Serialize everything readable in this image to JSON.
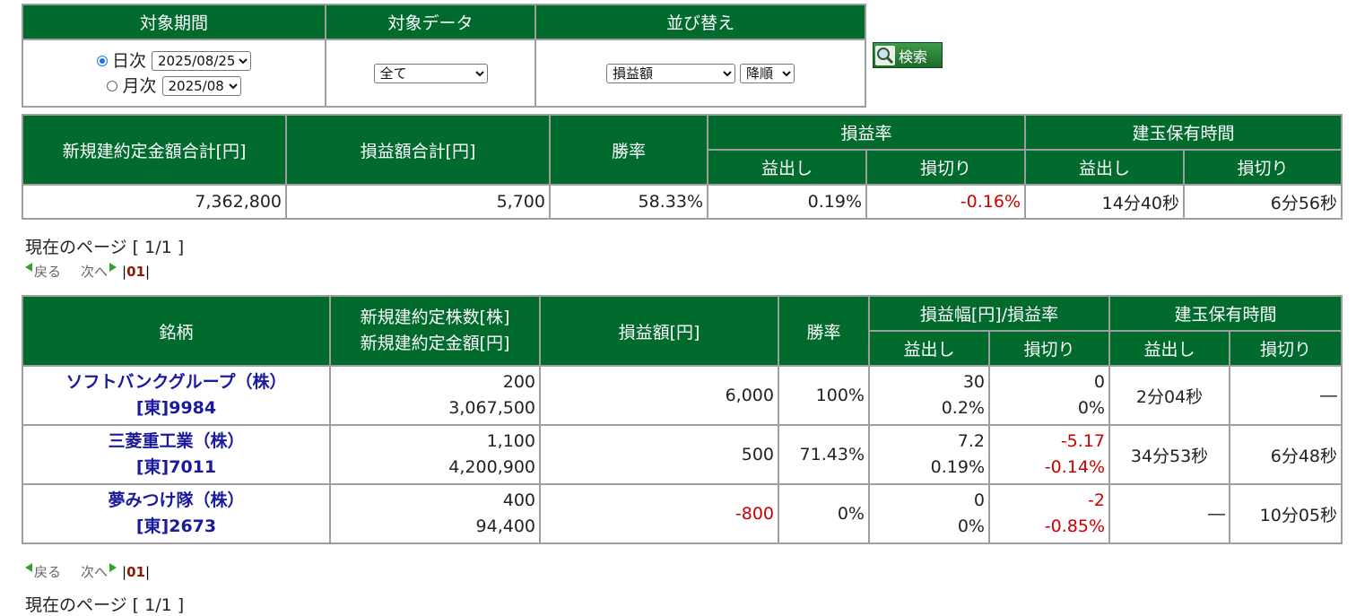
{
  "filter": {
    "headers": [
      "対象期間",
      "対象データ",
      "並び替え"
    ],
    "daily_label": "日次",
    "daily_value": "2025/08/25",
    "monthly_label": "月次",
    "monthly_value": "2025/08",
    "data_value": "全て",
    "sort_value": "損益額",
    "order_value": "降順",
    "search_label": "検索"
  },
  "summary": {
    "headers": {
      "total_amount": "新規建約定金額合計[円]",
      "total_pnl": "損益額合計[円]",
      "win_rate": "勝率",
      "pnl_rate": "損益率",
      "hold_time": "建玉保有時間",
      "profit": "益出し",
      "loss": "損切り"
    },
    "values": {
      "total_amount": "7,362,800",
      "total_pnl": "5,700",
      "win_rate": "58.33%",
      "rate_profit": "0.19%",
      "rate_loss": "-0.16%",
      "time_profit": "14分40秒",
      "time_loss": "6分56秒"
    }
  },
  "pager": {
    "current_label": "現在のページ [ 1/1 ]",
    "prev": "戻る",
    "next": "次へ",
    "sep": "|",
    "page": "01"
  },
  "detail": {
    "headers": {
      "name": "銘柄",
      "shares": "新規建約定株数[株]",
      "amount": "新規建約定金額[円]",
      "pnl": "損益額[円]",
      "win_rate": "勝率",
      "range_rate": "損益幅[円]/損益率",
      "hold_time": "建玉保有時間",
      "profit": "益出し",
      "loss": "損切り"
    },
    "rows": [
      {
        "name": "ソフトバンクグループ（株）",
        "code": "[東]9984",
        "shares": "200",
        "amount": "3,067,500",
        "pnl": "6,000",
        "win_rate": "100%",
        "profit_range": "30",
        "profit_rate": "0.2%",
        "loss_range": "0",
        "loss_rate": "0%",
        "time_profit": "2分04秒",
        "time_loss": "―"
      },
      {
        "name": "三菱重工業（株）",
        "code": "[東]7011",
        "shares": "1,100",
        "amount": "4,200,900",
        "pnl": "500",
        "win_rate": "71.43%",
        "profit_range": "7.2",
        "profit_rate": "0.19%",
        "loss_range": "-5.17",
        "loss_rate": "-0.14%",
        "time_profit": "34分53秒",
        "time_loss": "6分48秒"
      },
      {
        "name": "夢みつけ隊（株）",
        "code": "[東]2673",
        "shares": "400",
        "amount": "94,400",
        "pnl": "-800",
        "win_rate": "0%",
        "profit_range": "0",
        "profit_rate": "0%",
        "loss_range": "-2",
        "loss_rate": "-0.85%",
        "time_profit": "―",
        "time_loss": "10分05秒"
      }
    ]
  },
  "colors": {
    "header_bg": "#006b2d",
    "negative": "#cc0000",
    "stock_link": "#1a1a9e"
  }
}
